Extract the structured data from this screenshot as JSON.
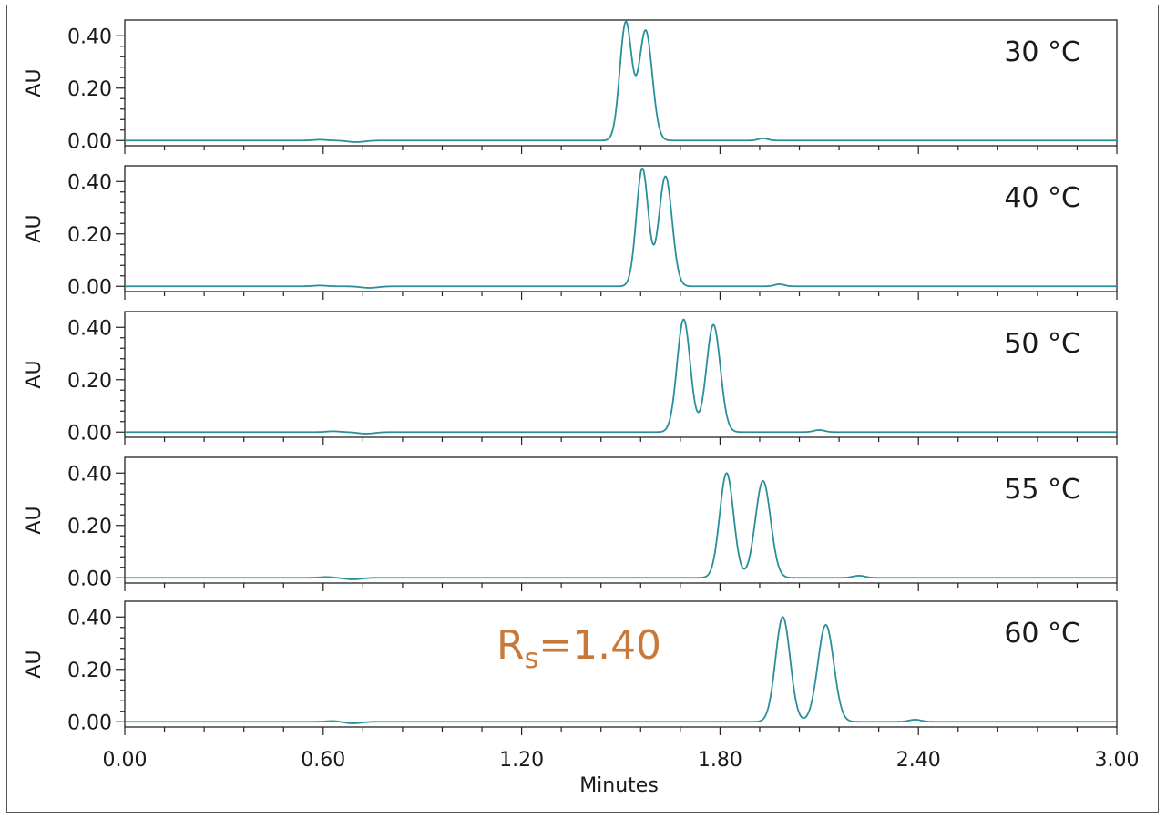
{
  "chart_data": {
    "type": "line",
    "xlabel": "Minutes",
    "ylabel": "AU",
    "xlim": [
      0,
      3
    ],
    "ylim": [
      -0.02,
      0.46
    ],
    "x_ticks": [
      "0.00",
      "0.60",
      "1.20",
      "1.80",
      "2.40",
      "3.00"
    ],
    "x_tick_values": [
      0,
      0.6,
      1.2,
      1.8,
      2.4,
      3.0
    ],
    "y_ticks": [
      "0.00",
      "0.20",
      "0.40"
    ],
    "y_tick_values": [
      0,
      0.2,
      0.4
    ],
    "line_color": "#2a8f9a",
    "grid": false,
    "panels": [
      {
        "label": "30 °C",
        "peaks": [
          {
            "rt": 1.515,
            "height": 0.45,
            "width": 0.018
          },
          {
            "rt": 1.575,
            "height": 0.42,
            "width": 0.02
          }
        ],
        "bumps": [
          {
            "rt": 0.59,
            "height": 0.003,
            "width": 0.02
          },
          {
            "rt": 0.7,
            "height": -0.006,
            "width": 0.025
          },
          {
            "rt": 1.93,
            "height": 0.008,
            "width": 0.015
          }
        ]
      },
      {
        "label": "40 °C",
        "peaks": [
          {
            "rt": 1.565,
            "height": 0.45,
            "width": 0.018
          },
          {
            "rt": 1.635,
            "height": 0.42,
            "width": 0.02
          }
        ],
        "bumps": [
          {
            "rt": 0.59,
            "height": 0.003,
            "width": 0.02
          },
          {
            "rt": 0.74,
            "height": -0.006,
            "width": 0.025
          },
          {
            "rt": 1.98,
            "height": 0.008,
            "width": 0.015
          }
        ]
      },
      {
        "label": "50 °C",
        "peaks": [
          {
            "rt": 1.69,
            "height": 0.43,
            "width": 0.02
          },
          {
            "rt": 1.78,
            "height": 0.41,
            "width": 0.021
          }
        ],
        "bumps": [
          {
            "rt": 0.63,
            "height": 0.003,
            "width": 0.02
          },
          {
            "rt": 0.73,
            "height": -0.006,
            "width": 0.025
          },
          {
            "rt": 2.1,
            "height": 0.008,
            "width": 0.016
          }
        ]
      },
      {
        "label": "55 °C",
        "peaks": [
          {
            "rt": 1.82,
            "height": 0.4,
            "width": 0.021
          },
          {
            "rt": 1.93,
            "height": 0.37,
            "width": 0.023
          }
        ],
        "bumps": [
          {
            "rt": 0.61,
            "height": 0.003,
            "width": 0.02
          },
          {
            "rt": 0.69,
            "height": -0.006,
            "width": 0.025
          },
          {
            "rt": 2.22,
            "height": 0.008,
            "width": 0.018
          }
        ]
      },
      {
        "label": "60 °C",
        "peaks": [
          {
            "rt": 1.99,
            "height": 0.4,
            "width": 0.022
          },
          {
            "rt": 2.12,
            "height": 0.37,
            "width": 0.024
          }
        ],
        "bumps": [
          {
            "rt": 0.63,
            "height": 0.003,
            "width": 0.02
          },
          {
            "rt": 0.69,
            "height": -0.006,
            "width": 0.025
          },
          {
            "rt": 2.39,
            "height": 0.008,
            "width": 0.018
          }
        ],
        "annotation": {
          "main": "R",
          "subscript": "s",
          "rest": "=1.40",
          "color": "#c8793a"
        }
      }
    ]
  }
}
